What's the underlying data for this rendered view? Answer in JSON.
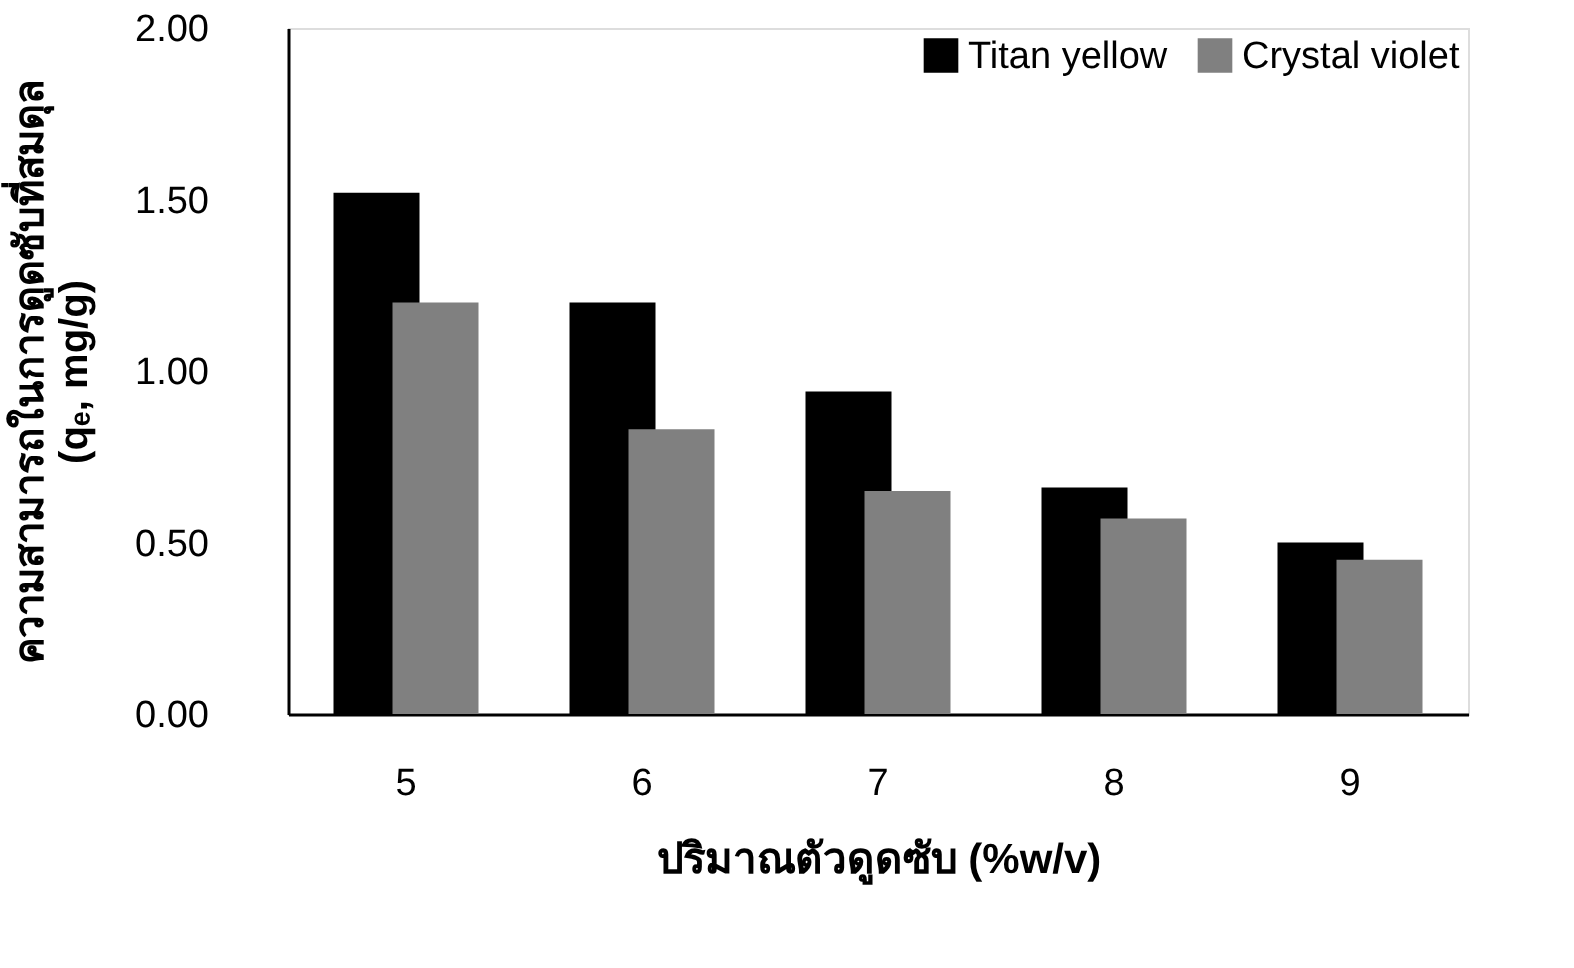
{
  "chart_data": {
    "type": "bar",
    "xlabel": "ปริมาณตัวดูดซับ (%w/v)",
    "ylabel": [
      "ความสามารถในการดูดซับที่สมดุล",
      "(qₑ, mg/g)"
    ],
    "categories": [
      "5",
      "6",
      "7",
      "8",
      "9"
    ],
    "series": [
      {
        "name": "Titan yellow",
        "color": "#000000",
        "values": [
          1.52,
          1.2,
          0.94,
          0.66,
          0.5
        ]
      },
      {
        "name": "Crystal violet",
        "color": "#808080",
        "values": [
          1.2,
          0.83,
          0.65,
          0.57,
          0.45
        ]
      }
    ],
    "ylim": [
      0,
      2
    ],
    "yticks": [
      {
        "value": 0,
        "label": "0.00"
      },
      {
        "value": 0.5,
        "label": "0.50"
      },
      {
        "value": 1,
        "label": "1.00"
      },
      {
        "value": 1.5,
        "label": "1.50"
      },
      {
        "value": 2,
        "label": "2.00"
      }
    ],
    "grid": false,
    "legend": "top right"
  }
}
